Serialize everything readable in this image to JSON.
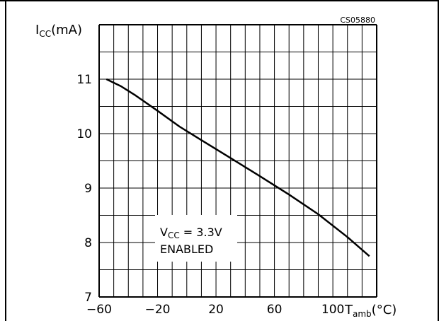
{
  "chart_data": {
    "type": "line",
    "figure_code": "CS05880",
    "ylabel": {
      "main": "I",
      "sub": "CC",
      "unit": "(mA)"
    },
    "xlabel": {
      "main": "T",
      "sub": "amb",
      "unit": "(°C)"
    },
    "xlim": [
      -60,
      130
    ],
    "ylim": [
      7,
      12
    ],
    "x_ticks": [
      -60,
      -20,
      20,
      60,
      100
    ],
    "x_tick_labels": [
      "−60",
      "−20",
      "20",
      "60",
      "100"
    ],
    "y_ticks": [
      7,
      8,
      9,
      10,
      11
    ],
    "y_tick_labels": [
      "7",
      "8",
      "9",
      "10",
      "11"
    ],
    "grid": true,
    "series": [
      {
        "x": [
          -55,
          -45,
          -35,
          -20,
          -5,
          10,
          30,
          50,
          70,
          90,
          110,
          125
        ],
        "y": [
          11.0,
          10.87,
          10.7,
          10.42,
          10.13,
          9.88,
          9.55,
          9.22,
          8.88,
          8.52,
          8.1,
          7.75
        ]
      }
    ],
    "annotation": {
      "line1_main": "V",
      "line1_sub": "CC",
      "line1_rest": " = 3.3V",
      "line2": "ENABLED"
    }
  }
}
